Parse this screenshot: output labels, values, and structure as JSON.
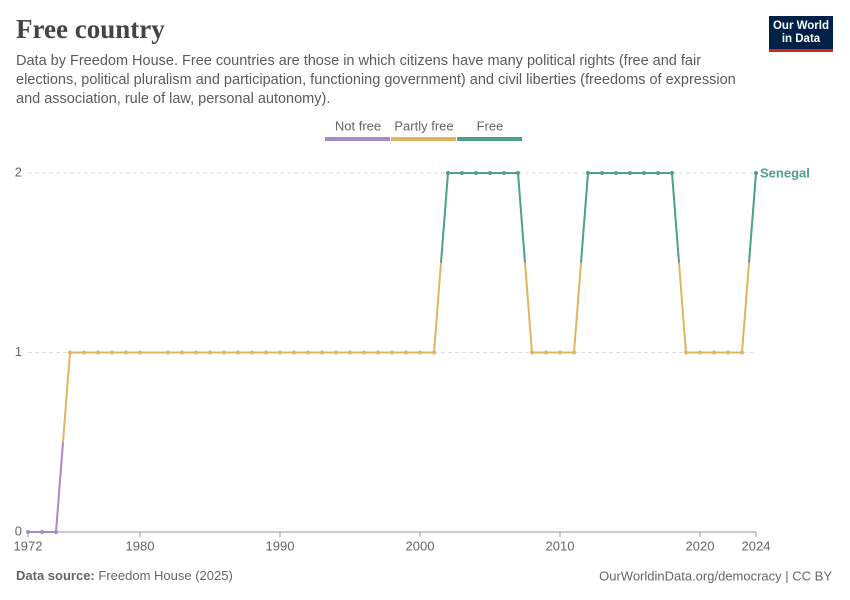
{
  "chart_data": {
    "type": "line",
    "title": "Free country",
    "subtitle": "Data by Freedom House. Free countries are those in which citizens have many political rights (free and fair elections, political pluralism and participation, functioning government) and civil liberties (freedoms of expression and association, rule of law, personal autonomy).",
    "legend": [
      {
        "label": "Not free",
        "color": "#a58bc8"
      },
      {
        "label": "Partly free",
        "color": "#e1b462"
      },
      {
        "label": "Free",
        "color": "#4ea088"
      }
    ],
    "x": [
      1972,
      1973,
      1974,
      1975,
      1976,
      1977,
      1978,
      1979,
      1980,
      1982,
      1983,
      1984,
      1985,
      1986,
      1987,
      1988,
      1989,
      1990,
      1991,
      1992,
      1993,
      1994,
      1995,
      1996,
      1997,
      1998,
      1999,
      2000,
      2001,
      2002,
      2003,
      2004,
      2005,
      2006,
      2007,
      2008,
      2009,
      2010,
      2011,
      2012,
      2013,
      2014,
      2015,
      2016,
      2017,
      2018,
      2019,
      2020,
      2021,
      2022,
      2023,
      2024
    ],
    "series": [
      {
        "name": "Senegal",
        "values": [
          0,
          0,
          0,
          1,
          1,
          1,
          1,
          1,
          1,
          1,
          1,
          1,
          1,
          1,
          1,
          1,
          1,
          1,
          1,
          1,
          1,
          1,
          1,
          1,
          1,
          1,
          1,
          1,
          1,
          2,
          2,
          2,
          2,
          2,
          2,
          1,
          1,
          1,
          1,
          2,
          2,
          2,
          2,
          2,
          2,
          2,
          1,
          1,
          1,
          1,
          1,
          2
        ]
      }
    ],
    "xlim": [
      1972,
      2024
    ],
    "xticks": [
      1972,
      1980,
      1990,
      2000,
      2010,
      2020,
      2024
    ],
    "ylim": [
      0,
      2
    ],
    "yticks": [
      0,
      1,
      2
    ],
    "grid": true,
    "source_label": "Data source:",
    "source": "Freedom House (2025)",
    "url": "OurWorldinData.org/democracy | CC BY",
    "logo": [
      "Our World",
      "in Data"
    ]
  }
}
